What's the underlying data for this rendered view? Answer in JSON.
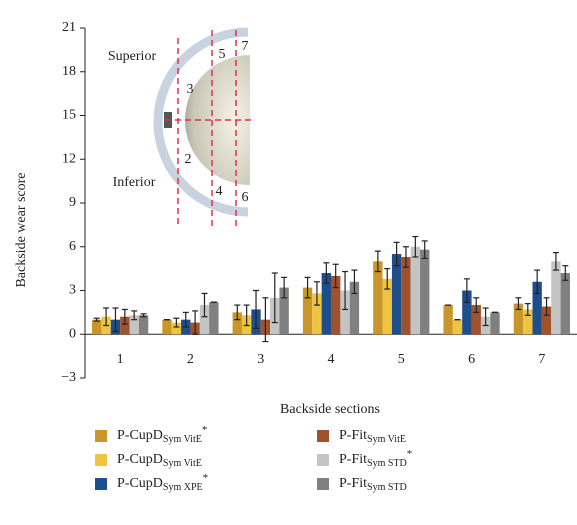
{
  "chart_data": {
    "type": "bar",
    "ylabel": "Backside wear score",
    "xlabel": "Backside sections",
    "categories": [
      "1",
      "2",
      "3",
      "4",
      "5",
      "6",
      "7"
    ],
    "ylim": [
      -3,
      21
    ],
    "yticks": [
      {
        "value": -3,
        "label": "−3"
      },
      0,
      3,
      6,
      9,
      12,
      15,
      18,
      21
    ],
    "series": [
      {
        "name": {
          "base": "P-CupD",
          "sub": "Sym VitE",
          "sup": "*"
        },
        "color": "#c8962a",
        "values": [
          1.0,
          1.0,
          1.5,
          3.2,
          5.0,
          2.0,
          2.1
        ],
        "errors": [
          0.1,
          0.0,
          0.5,
          0.7,
          0.7,
          0.0,
          0.4
        ]
      },
      {
        "name": {
          "base": "P-CupD",
          "sub": "Sym VitE"
        },
        "color": "#f0c443",
        "values": [
          1.2,
          0.8,
          1.3,
          2.8,
          3.8,
          1.0,
          1.7
        ],
        "errors": [
          0.6,
          0.3,
          0.7,
          0.8,
          0.7,
          0.0,
          0.4
        ]
      },
      {
        "name": {
          "base": "P-CupD",
          "sub": "Sym XPE",
          "sup": "*"
        },
        "color": "#1f4e8c",
        "values": [
          1.0,
          1.0,
          1.7,
          4.2,
          5.5,
          3.0,
          3.6
        ],
        "errors": [
          0.8,
          0.5,
          1.3,
          0.7,
          0.8,
          0.8,
          0.8
        ]
      },
      {
        "name": {
          "base": "P-Fit",
          "sub": "Sym VitE"
        },
        "color": "#a0522d",
        "values": [
          1.2,
          0.8,
          1.0,
          4.0,
          5.3,
          2.0,
          1.9
        ],
        "errors": [
          0.5,
          0.8,
          1.5,
          0.8,
          0.7,
          0.5,
          0.6
        ]
      },
      {
        "name": {
          "base": "P-Fit",
          "sub": "Sym STD",
          "sup": "*"
        },
        "color": "#c4c4c4",
        "values": [
          1.3,
          2.0,
          2.5,
          3.0,
          6.0,
          1.2,
          5.0
        ],
        "errors": [
          0.3,
          0.8,
          1.7,
          1.3,
          0.7,
          0.6,
          0.6
        ]
      },
      {
        "name": {
          "base": "P-Fit",
          "sub": "Sym STD"
        },
        "color": "#808080",
        "values": [
          1.3,
          2.2,
          3.2,
          3.6,
          5.8,
          1.5,
          4.2
        ],
        "errors": [
          0.1,
          0.0,
          0.7,
          0.8,
          0.6,
          0.0,
          0.5
        ]
      }
    ],
    "inset": {
      "superior": "Superior",
      "inferior": "Inferior",
      "sections": [
        "2",
        "3",
        "4",
        "5",
        "6",
        "7"
      ]
    }
  }
}
